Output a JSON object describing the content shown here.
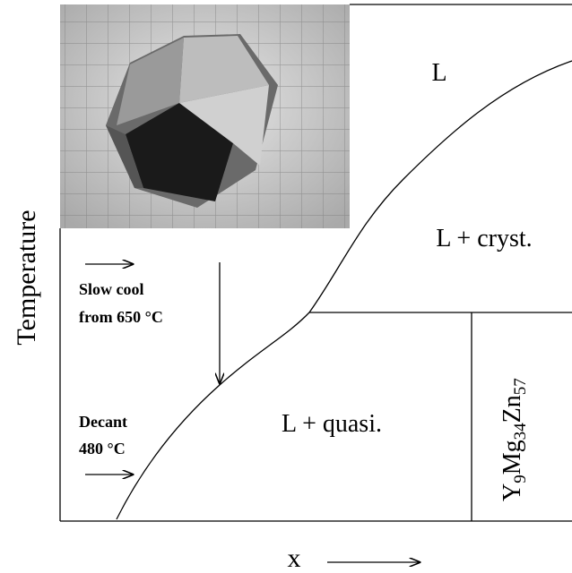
{
  "axes": {
    "y_label": "Temperature",
    "x_label": "x"
  },
  "regions": {
    "liquid": "L",
    "liquid_cryst": "L + cryst.",
    "liquid_quasi": "L + quasi."
  },
  "phase": {
    "parts": [
      "Y",
      "9",
      "Mg",
      "34",
      "Zn",
      "57"
    ]
  },
  "annotations": {
    "slow_cool": [
      "Slow cool",
      "from 650 °C"
    ],
    "decant": [
      "Decant",
      "480 °C"
    ]
  }
}
